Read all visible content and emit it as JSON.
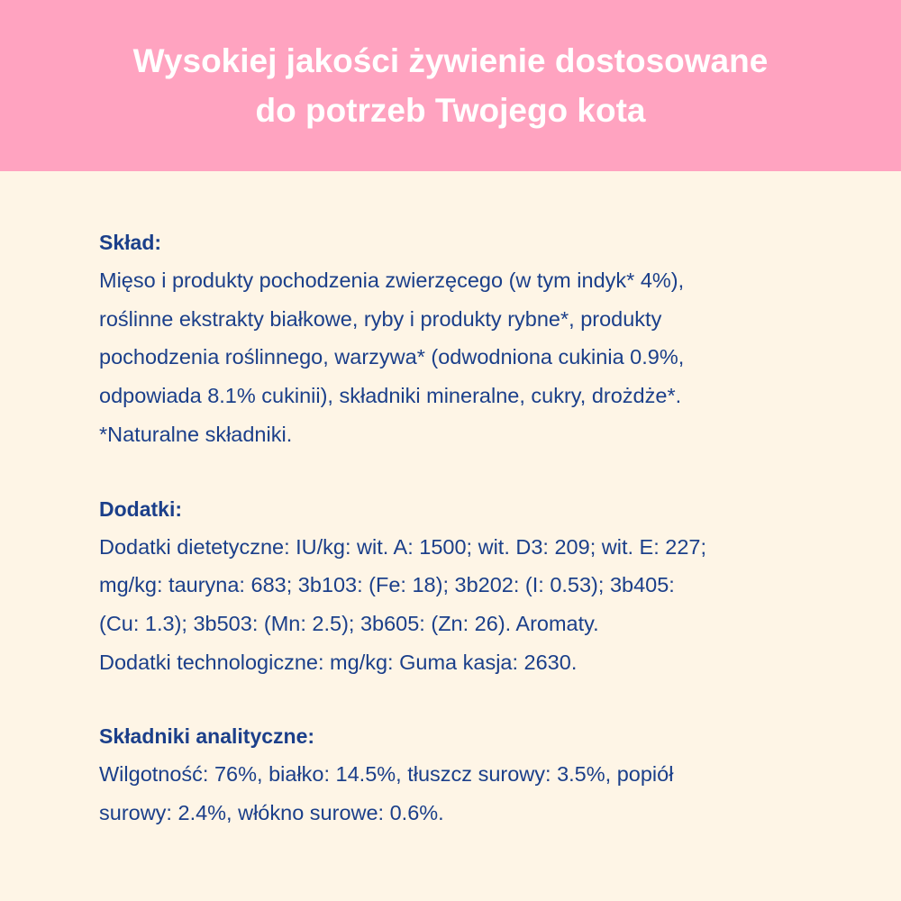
{
  "header": {
    "title_lines": [
      "Wysokiej jakości żywienie dostosowane",
      "do potrzeb Twojego kota"
    ]
  },
  "colors": {
    "header_bg": "#FFA3C0",
    "page_bg": "#FEF5E6",
    "text": "#1B3F8A"
  },
  "sections": [
    {
      "heading": "Skład:",
      "lines": [
        "Mięso i produkty pochodzenia zwierzęcego (w tym indyk* 4%),",
        "roślinne ekstrakty białkowe, ryby i produkty rybne*, produkty",
        "pochodzenia roślinnego, warzywa* (odwodniona cukinia 0.9%,",
        "odpowiada 8.1% cukinii), składniki mineralne, cukry, drożdże*.",
        "*Naturalne składniki."
      ]
    },
    {
      "heading": "Dodatki:",
      "lines": [
        "Dodatki dietetyczne: IU/kg: wit. A: 1500; wit. D3: 209; wit. E: 227;",
        "mg/kg: tauryna: 683; 3b103: (Fe: 18); 3b202: (I: 0.53); 3b405:",
        "(Cu: 1.3); 3b503: (Mn: 2.5); 3b605: (Zn: 26). Aromaty.",
        "Dodatki technologiczne: mg/kg: Guma kasja: 2630."
      ]
    },
    {
      "heading": "Składniki analityczne:",
      "lines": [
        "Wilgotność: 76%, białko: 14.5%, tłuszcz surowy: 3.5%, popiół",
        "surowy: 2.4%, włókno surowe: 0.6%."
      ]
    }
  ]
}
